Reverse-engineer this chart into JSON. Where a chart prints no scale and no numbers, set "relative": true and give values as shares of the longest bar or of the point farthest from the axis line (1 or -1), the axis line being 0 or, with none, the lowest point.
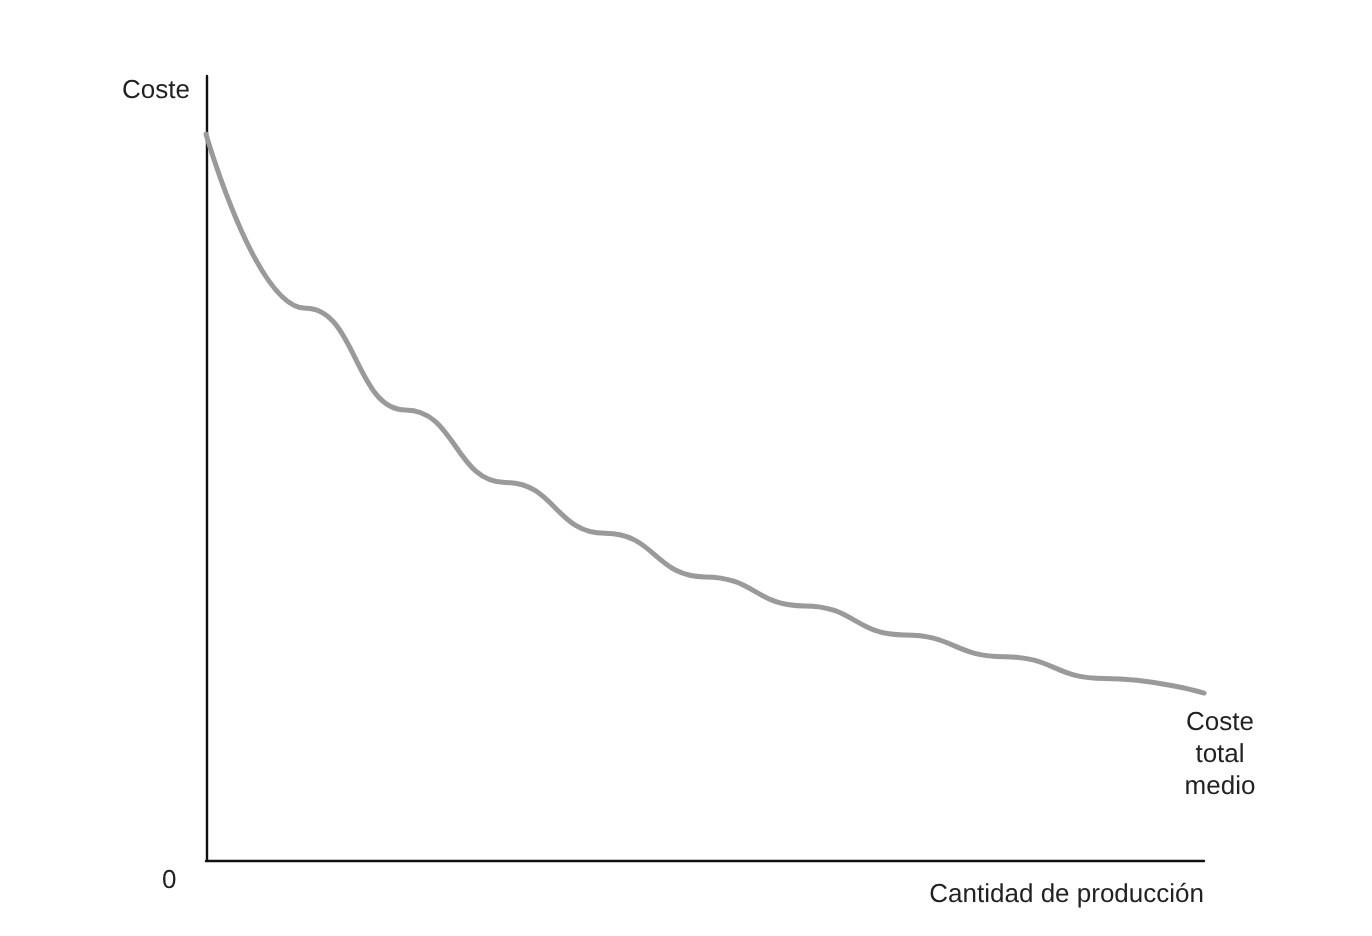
{
  "chart_data": {
    "type": "line",
    "relative": true,
    "ylabel": "Coste",
    "xlabel": "Cantidad de producción",
    "annotations": [
      "0"
    ],
    "categories": [
      null,
      null,
      null,
      null,
      null,
      null,
      null,
      null,
      null,
      null,
      null
    ],
    "series": [
      {
        "name": "Coste\ntotal\nmedio",
        "color": "#9a9a9a",
        "values": [
          1,
          0.76,
          0.62,
          0.52,
          0.45,
          0.39,
          0.35,
          0.31,
          0.28,
          0.25,
          0.23
        ]
      }
    ],
    "grid": false,
    "legend": false,
    "marker": "none",
    "line_style": "solid"
  }
}
